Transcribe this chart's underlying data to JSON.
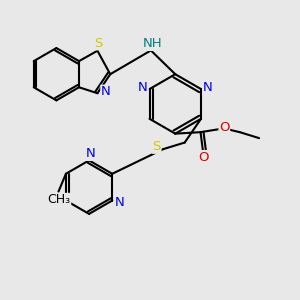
{
  "bg": "#e8e8e8",
  "bond_lw": 1.5,
  "atom_colors": {
    "N": "#0000ee",
    "S": "#cccc00",
    "O": "#dd0000",
    "NH": "#008080",
    "C": "#000000"
  },
  "fs": 9.5
}
